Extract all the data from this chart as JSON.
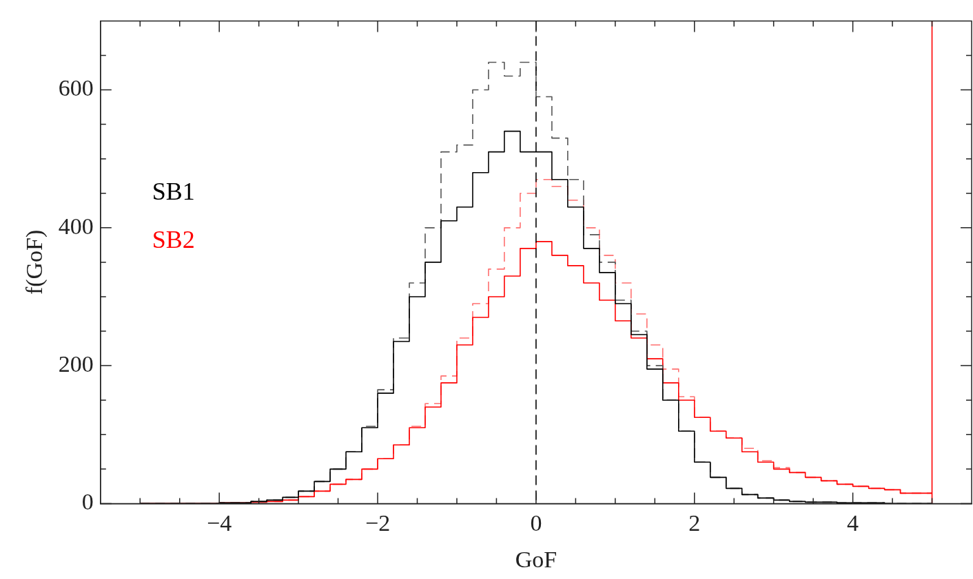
{
  "chart_data": {
    "type": "histogram",
    "xlabel": "GoF",
    "ylabel": "f(GoF)",
    "bins": [
      -5,
      -4.8,
      -4.6,
      -4.4,
      -4.2,
      -4,
      -3.8,
      -3.6,
      -3.4,
      -3.2,
      -3,
      -2.8,
      -2.6,
      -2.4,
      -2.2,
      -2,
      -1.8,
      -1.6,
      -1.4,
      -1.2,
      -1,
      -0.8,
      -0.6,
      -0.4,
      -0.2,
      0,
      0.2,
      0.4,
      0.6,
      0.8,
      1,
      1.2,
      1.4,
      1.6,
      1.8,
      2,
      2.2,
      2.4,
      2.6,
      2.8,
      3,
      3.2,
      3.4,
      3.6,
      3.8,
      4,
      4.2,
      4.4,
      4.6,
      4.8,
      5
    ],
    "series": [
      {
        "name": "SB1",
        "color": "#000000",
        "line_style": "solid",
        "values": [
          0,
          0,
          0,
          0,
          0,
          1,
          1,
          3,
          5,
          9,
          18,
          32,
          50,
          75,
          110,
          160,
          235,
          300,
          350,
          410,
          430,
          480,
          510,
          540,
          510,
          510,
          470,
          430,
          370,
          335,
          290,
          245,
          195,
          150,
          105,
          60,
          38,
          22,
          13,
          8,
          5,
          3,
          2,
          2,
          1,
          1,
          1,
          0,
          0,
          0
        ]
      },
      {
        "color": "#555555",
        "line_style": "dashed",
        "values": [
          0,
          0,
          0,
          0,
          0,
          1,
          1,
          3,
          5,
          9,
          18,
          32,
          50,
          75,
          112,
          165,
          240,
          320,
          400,
          510,
          520,
          600,
          640,
          620,
          640,
          590,
          530,
          470,
          390,
          350,
          295,
          250,
          200,
          150,
          105,
          60,
          38,
          22,
          13,
          8,
          5,
          3,
          2,
          2,
          1,
          1,
          1,
          0,
          0,
          0
        ]
      },
      {
        "name": "SB2",
        "color": "#ff0000",
        "line_style": "solid",
        "values": [
          0,
          0,
          0,
          0,
          0,
          1,
          1,
          2,
          3,
          5,
          10,
          18,
          28,
          35,
          50,
          65,
          85,
          110,
          140,
          175,
          230,
          270,
          300,
          330,
          370,
          380,
          360,
          345,
          320,
          295,
          265,
          240,
          210,
          175,
          150,
          125,
          105,
          95,
          75,
          60,
          50,
          45,
          38,
          33,
          28,
          25,
          22,
          20,
          15,
          15
        ]
      },
      {
        "color": "#ff7070",
        "line_style": "dashed",
        "values": [
          0,
          0,
          0,
          0,
          0,
          1,
          1,
          2,
          3,
          5,
          10,
          18,
          28,
          35,
          50,
          65,
          85,
          112,
          145,
          185,
          240,
          290,
          340,
          400,
          450,
          470,
          460,
          440,
          400,
          360,
          320,
          275,
          230,
          195,
          155,
          125,
          105,
          95,
          80,
          62,
          52,
          45,
          38,
          33,
          28,
          25,
          22,
          20,
          15,
          15
        ]
      }
    ],
    "xlim": [
      -5.5,
      5.5
    ],
    "xticks": [
      {
        "value": -5,
        "label": null
      },
      {
        "value": -4.5,
        "label": null
      },
      -4,
      {
        "value": -3.5,
        "label": null
      },
      {
        "value": -3,
        "label": null
      },
      {
        "value": -2.5,
        "label": null
      },
      -2,
      {
        "value": -1.5,
        "label": null
      },
      {
        "value": -1,
        "label": null
      },
      {
        "value": -0.5,
        "label": null
      },
      0,
      {
        "value": 0.5,
        "label": null
      },
      {
        "value": 1,
        "label": null
      },
      {
        "value": 1.5,
        "label": null
      },
      2,
      {
        "value": 2.5,
        "label": null
      },
      {
        "value": 3,
        "label": null
      },
      {
        "value": 3.5,
        "label": null
      },
      4,
      {
        "value": 4.5,
        "label": null
      },
      {
        "value": 5,
        "label": null
      }
    ],
    "ylim": [
      0,
      700
    ],
    "yticks": [
      0,
      {
        "value": 50,
        "label": null
      },
      {
        "value": 100,
        "label": null
      },
      {
        "value": 150,
        "label": null
      },
      200,
      {
        "value": 250,
        "label": null
      },
      {
        "value": 300,
        "label": null
      },
      {
        "value": 350,
        "label": null
      },
      400,
      {
        "value": 450,
        "label": null
      },
      {
        "value": 500,
        "label": null
      },
      {
        "value": 550,
        "label": null
      },
      600,
      {
        "value": 650,
        "label": null
      }
    ],
    "ref_lines": [
      {
        "axis": "x",
        "value": 0,
        "color": "#000000",
        "line_style": "dashed"
      },
      {
        "axis": "x",
        "value": 5,
        "color": "#ff0000",
        "line_style": "solid"
      }
    ],
    "legend": "left",
    "grid": false
  }
}
